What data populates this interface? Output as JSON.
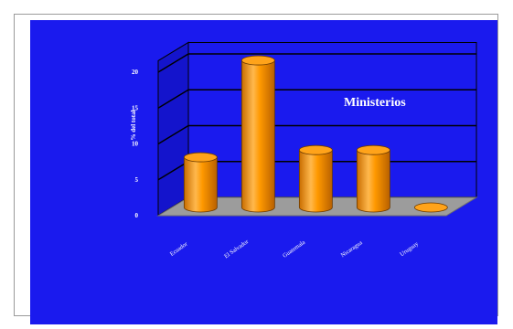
{
  "chart_data": {
    "type": "bar",
    "style": "3d-cylinder",
    "title": "Ministerios",
    "ylabel": "% del total",
    "xlabel": "",
    "categories": [
      "Ecuador",
      "El Salvador",
      "Guatemala",
      "Nicaragua",
      "Uruguay"
    ],
    "values": [
      7,
      20.5,
      8,
      8,
      0
    ],
    "ylim": [
      0,
      20
    ],
    "yticks": [
      "0",
      "5",
      "10",
      "15",
      "20"
    ],
    "grid": true,
    "legend": "none",
    "colors": {
      "background": "#1a1aee",
      "bar": "#ff9900",
      "bar_highlight": "#ffd27a",
      "bar_shadow": "#c96d00",
      "floor": "#9c9c9c",
      "gridline": "#000000",
      "text": "#ffffff"
    }
  }
}
